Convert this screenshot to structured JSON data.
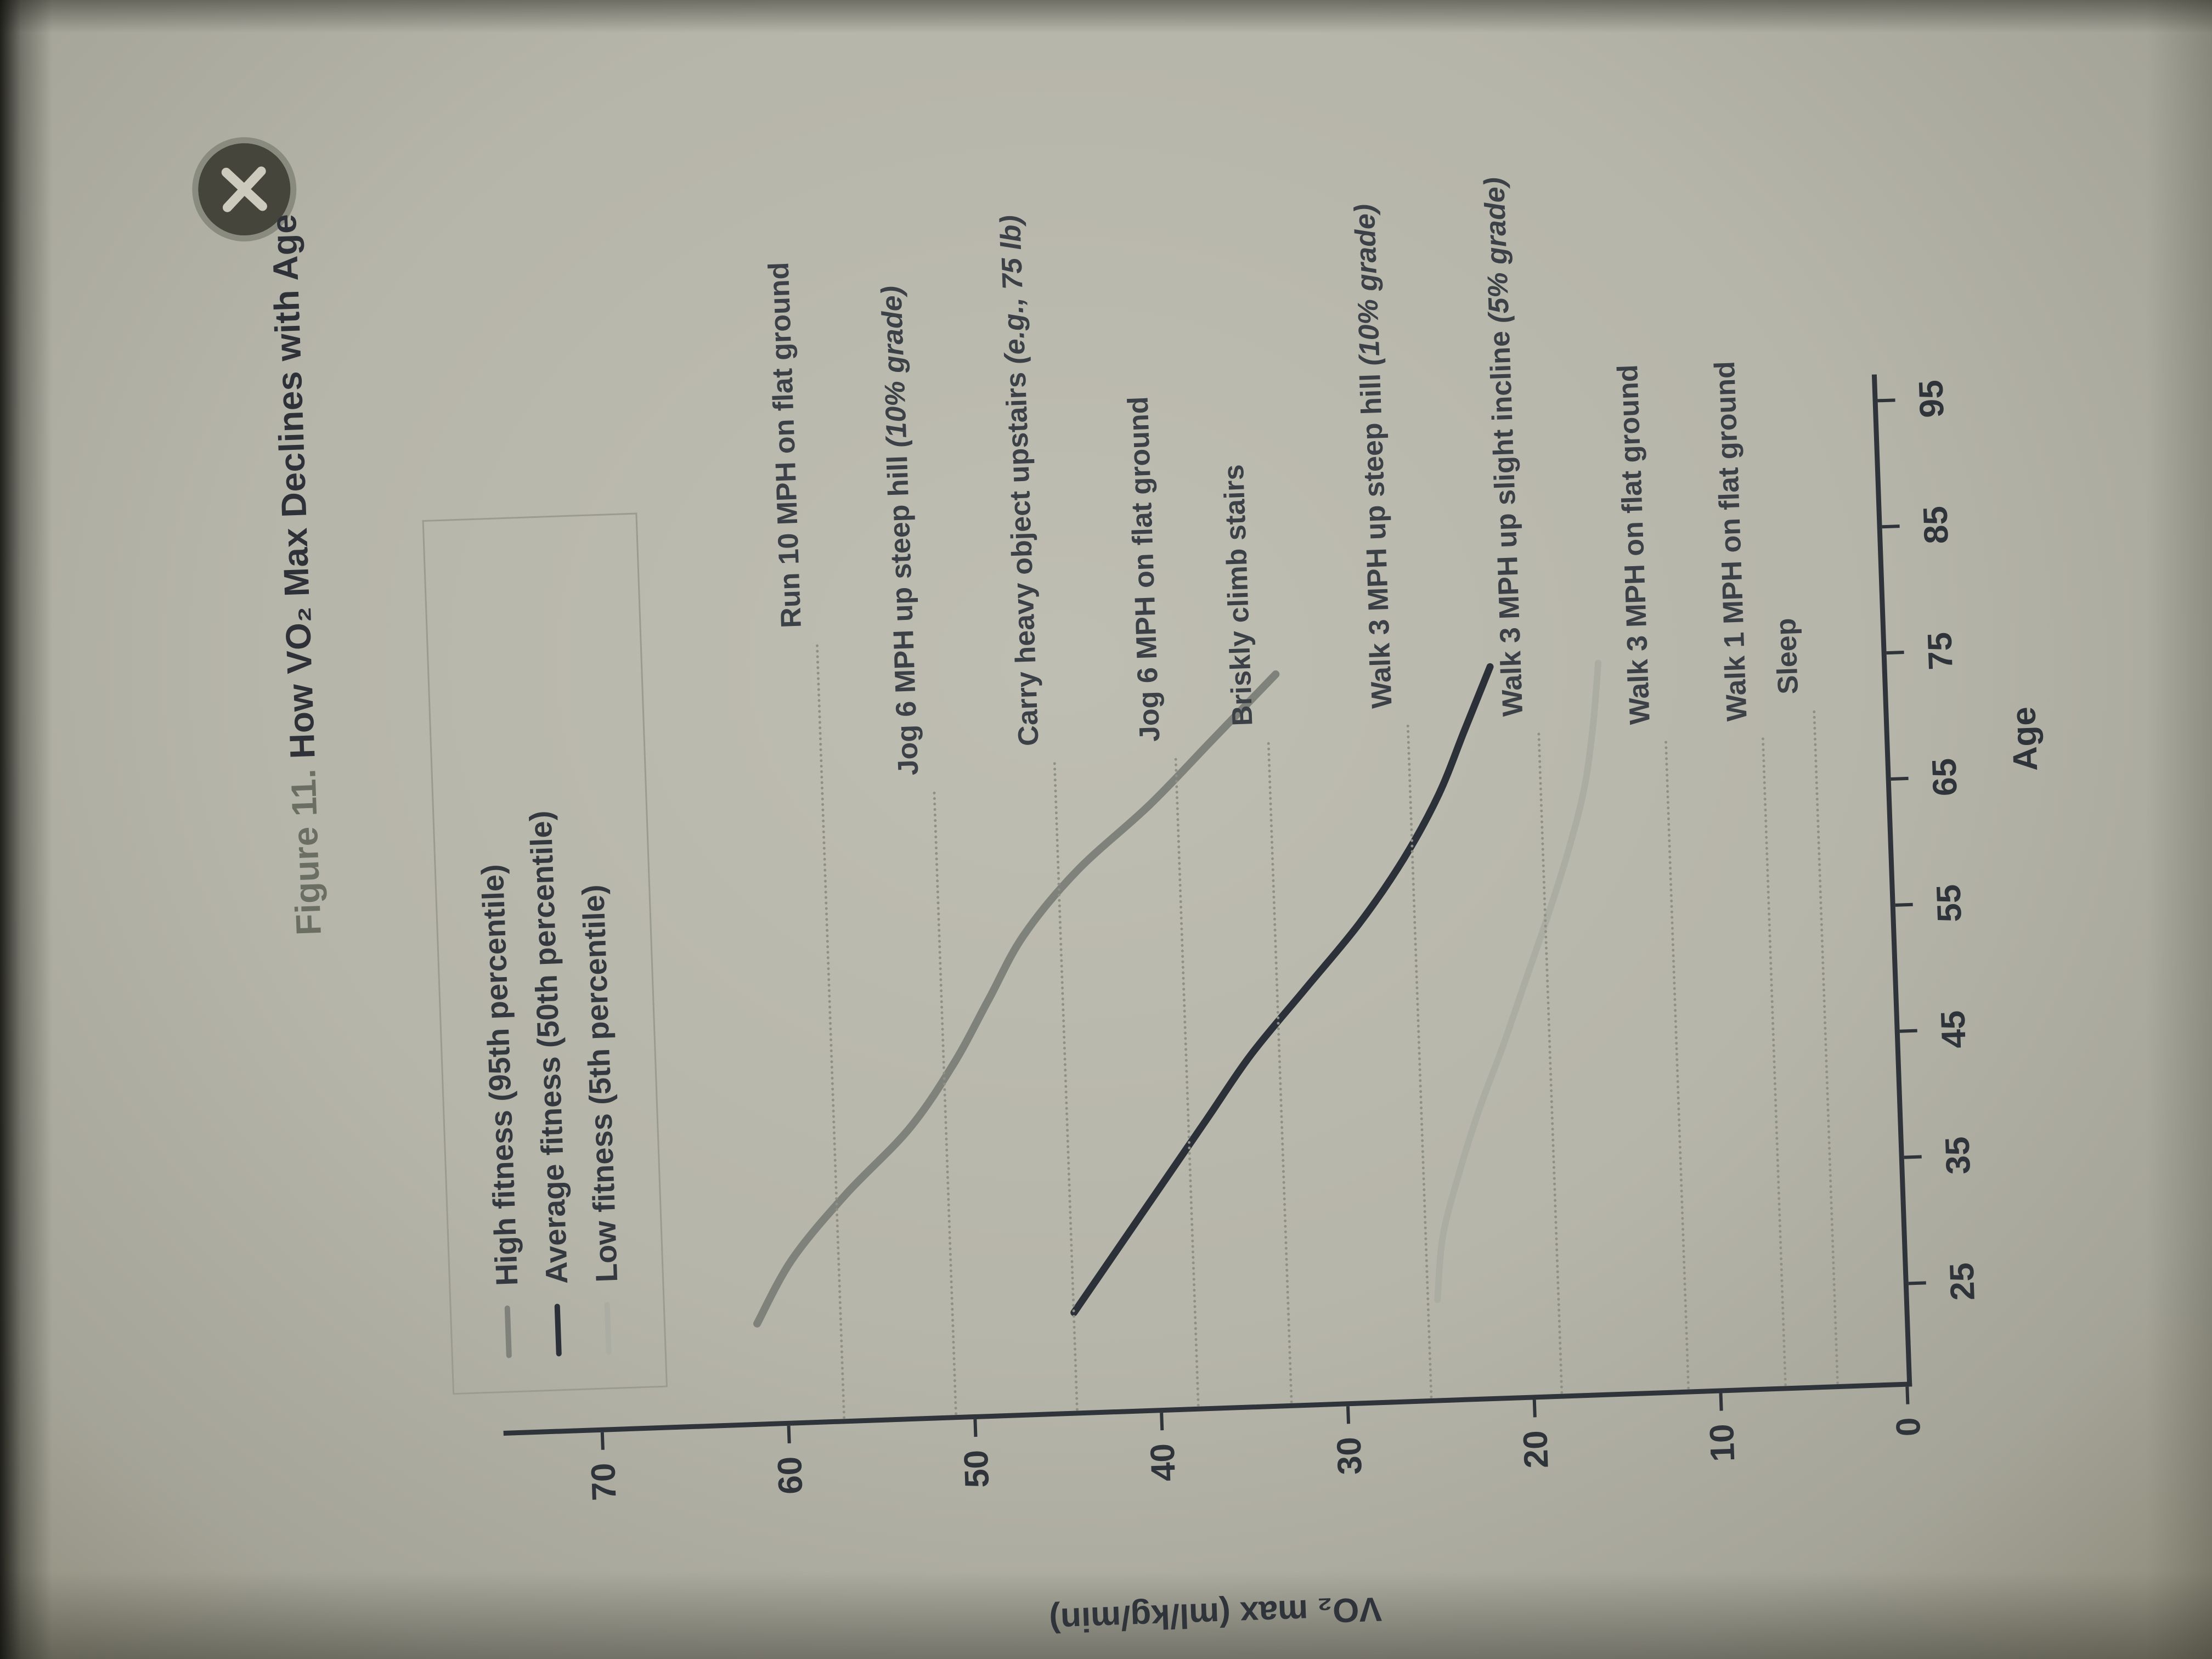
{
  "window": {
    "close_button": "close"
  },
  "title": {
    "prefix": "Figure 11.",
    "main": " How VO₂ Max Declines with Age"
  },
  "legend": {
    "items": [
      {
        "label": "High fitness (95th percentile)",
        "color": "#7f827b"
      },
      {
        "label": "Average fitness (50th percentile)",
        "color": "#2c3038"
      },
      {
        "label": "Low fitness (5th percentile)",
        "color": "#abada3"
      }
    ]
  },
  "chart_data": {
    "type": "line",
    "title": "Figure 11. How VO₂ Max Declines with Age",
    "xlabel": "Age",
    "ylabel": "VO₂ max (ml/kg/min)",
    "xlim": [
      17,
      97
    ],
    "ylim": [
      0,
      75
    ],
    "x_ticks": [
      25,
      35,
      45,
      55,
      65,
      75,
      85,
      95
    ],
    "y_ticks": [
      0,
      10,
      20,
      30,
      40,
      50,
      60,
      70
    ],
    "grid": false,
    "legend_position": "upper right of plot, boxed",
    "reference_lines": [
      {
        "label": "Run 10 MPH on flat ground",
        "note": "",
        "vo2": 57,
        "label_age": 80
      },
      {
        "label": "Jog 6 MPH up steep hill ",
        "note": "(10% grade)",
        "vo2": 51,
        "label_age": 68
      },
      {
        "label": "Carry heavy object upstairs ",
        "note": "(e.g., 75 lb)",
        "vo2": 44.5,
        "label_age": 70
      },
      {
        "label": "Jog 6 MPH on flat ground",
        "note": "",
        "vo2": 38,
        "label_age": 70
      },
      {
        "label": "Briskly climb stairs",
        "note": "",
        "vo2": 33,
        "label_age": 71
      },
      {
        "label": "Walk 3 MPH up steep hill ",
        "note": "(10% grade)",
        "vo2": 25.5,
        "label_age": 72
      },
      {
        "label": "Walk 3 MPH up slight incline ",
        "note": "(5% grade)",
        "vo2": 18.5,
        "label_age": 71
      },
      {
        "label": "Walk 3 MPH on flat ground",
        "note": "",
        "vo2": 11.7,
        "label_age": 70
      },
      {
        "label": "Walk 1 MPH on flat ground",
        "note": "",
        "vo2": 6.5,
        "label_age": 70
      },
      {
        "label": "Sleep",
        "note": "",
        "vo2": 3.7,
        "label_age": 72
      }
    ],
    "series": [
      {
        "name": "High fitness (95th percentile)",
        "color": "#7f827b",
        "width": 14,
        "points": [
          [
            25,
            61.5
          ],
          [
            30,
            59.5
          ],
          [
            35,
            56.5
          ],
          [
            40,
            53
          ],
          [
            45,
            50.5
          ],
          [
            50,
            48.5
          ],
          [
            55,
            46.5
          ],
          [
            60,
            43.5
          ],
          [
            65,
            39.5
          ],
          [
            70,
            36
          ],
          [
            75,
            32.5
          ]
        ]
      },
      {
        "name": "Average fitness (50th percentile)",
        "color": "#2c3038",
        "width": 13,
        "points": [
          [
            25,
            44.5
          ],
          [
            30,
            42
          ],
          [
            35,
            39.5
          ],
          [
            40,
            37
          ],
          [
            45,
            34.5
          ],
          [
            50,
            31.5
          ],
          [
            55,
            28.5
          ],
          [
            60,
            26
          ],
          [
            65,
            24
          ],
          [
            70,
            22.5
          ],
          [
            75,
            21
          ]
        ]
      },
      {
        "name": "Low fitness (5th percentile)",
        "color": "#abada3",
        "width": 12,
        "points": [
          [
            25,
            25
          ],
          [
            30,
            24.6
          ],
          [
            35,
            23.6
          ],
          [
            40,
            22.4
          ],
          [
            45,
            21
          ],
          [
            50,
            19.7
          ],
          [
            55,
            18.4
          ],
          [
            60,
            17.2
          ],
          [
            65,
            16.2
          ],
          [
            70,
            15.6
          ],
          [
            75,
            15.2
          ]
        ]
      }
    ]
  }
}
